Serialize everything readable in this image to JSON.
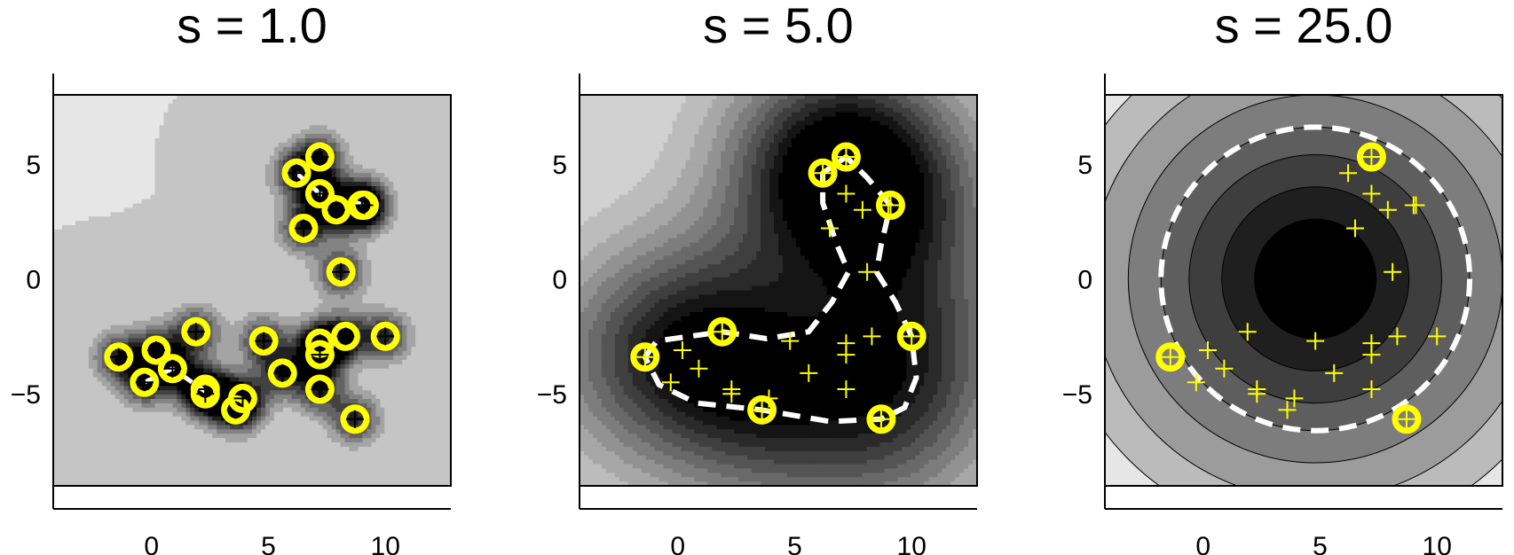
{
  "figure": {
    "contour_fill_dark": "#000000",
    "contour_fill_light": "#e6e6e6",
    "marker_color": "#ffff00",
    "boundary_color": "#ffffff"
  },
  "chart_data": [
    {
      "type": "contour",
      "title": "s =  1.0",
      "xlim": [
        -4.2,
        12.8
      ],
      "ylim": [
        -9,
        8
      ],
      "xticks": [
        0,
        5,
        10
      ],
      "yticks": [
        5,
        0,
        -5
      ],
      "xtick_labels": [
        "0",
        "5",
        "10"
      ],
      "ytick_labels": [
        "5",
        "0",
        "−5"
      ],
      "gamma": 1.0,
      "levels": 7,
      "support_vector_indices": "all",
      "dashed_boundary": true
    },
    {
      "type": "contour",
      "title": "s =  5.0",
      "xlim": [
        -4.2,
        12.8
      ],
      "ylim": [
        -9,
        8
      ],
      "xticks": [
        0,
        5,
        10
      ],
      "yticks": [
        5,
        0,
        -5
      ],
      "xtick_labels": [
        "0",
        "5",
        "10"
      ],
      "ytick_labels": [
        "5",
        "0",
        "−5"
      ],
      "gamma": 0.05,
      "levels": 11,
      "support_vectors": [
        [
          -1.4,
          -3.4
        ],
        [
          1.9,
          -2.3
        ],
        [
          3.6,
          -5.7
        ],
        [
          6.2,
          4.6
        ],
        [
          7.2,
          5.3
        ],
        [
          9.1,
          3.2
        ],
        [
          10.0,
          -2.5
        ],
        [
          8.7,
          -6.1
        ]
      ],
      "dashed_boundary": true
    },
    {
      "type": "contour",
      "title": "s = 25.0",
      "xlim": [
        -4.2,
        12.8
      ],
      "ylim": [
        -9,
        8
      ],
      "xticks": [
        0,
        5,
        10
      ],
      "yticks": [
        5,
        0,
        -5
      ],
      "xtick_labels": [
        "0",
        "5",
        "10"
      ],
      "ytick_labels": [
        "5",
        "0",
        "−5"
      ],
      "center": [
        4.8,
        0
      ],
      "boundary_radius": 6.6,
      "levels": [
        2.6,
        4.0,
        5.4,
        6.6,
        8.0,
        9.6,
        11.2
      ],
      "support_vectors": [
        [
          -1.4,
          -3.4
        ],
        [
          7.2,
          5.3
        ],
        [
          8.7,
          -6.1
        ]
      ],
      "dashed_boundary": true
    }
  ],
  "points": [
    [
      -1.4,
      -3.4
    ],
    [
      -0.3,
      -4.5
    ],
    [
      0.2,
      -3.1
    ],
    [
      0.9,
      -3.9
    ],
    [
      1.9,
      -2.3
    ],
    [
      2.3,
      -4.8
    ],
    [
      2.3,
      -5.0
    ],
    [
      3.6,
      -5.7
    ],
    [
      3.9,
      -5.2
    ],
    [
      4.8,
      -2.7
    ],
    [
      5.6,
      -4.1
    ],
    [
      6.2,
      4.6
    ],
    [
      6.5,
      2.2
    ],
    [
      7.2,
      5.3
    ],
    [
      7.2,
      3.7
    ],
    [
      7.2,
      -2.8
    ],
    [
      7.2,
      -3.3
    ],
    [
      7.2,
      -4.8
    ],
    [
      7.9,
      3.0
    ],
    [
      8.1,
      0.3
    ],
    [
      8.3,
      -2.5
    ],
    [
      9.0,
      3.2
    ],
    [
      9.1,
      3.2
    ],
    [
      10.0,
      -2.5
    ],
    [
      8.7,
      -6.1
    ]
  ]
}
